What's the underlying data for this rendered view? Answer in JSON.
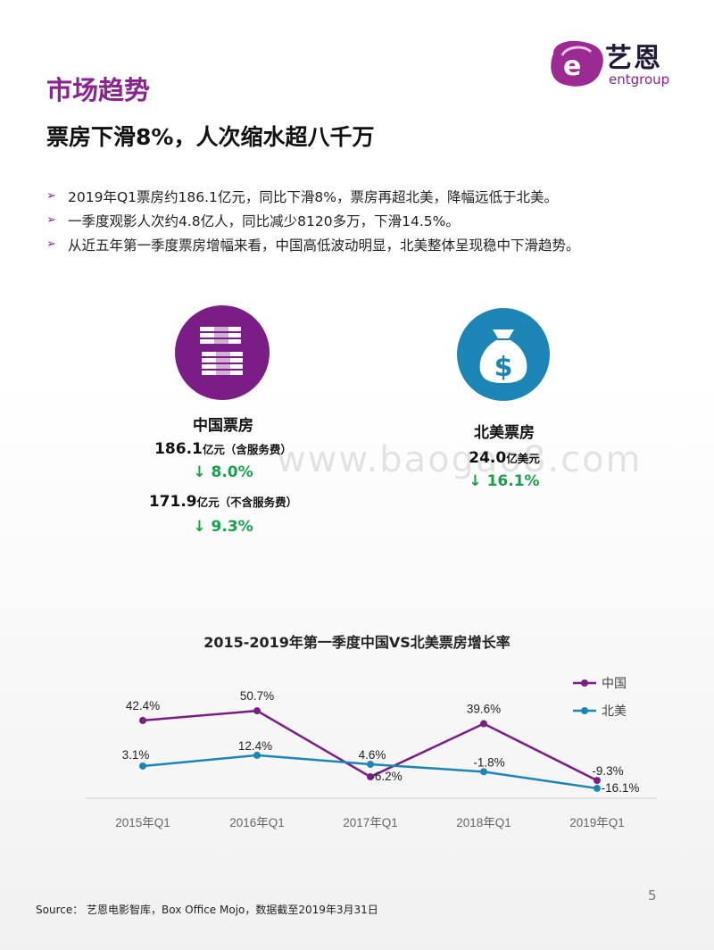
{
  "header": {
    "section_title": "市场趋势",
    "headline": "票房下滑8%，人次缩水超八千万",
    "logo_cn": "艺恩",
    "logo_en": "entgroup"
  },
  "bullets": [
    "2019年Q1票房约186.1亿元，同比下滑8%，票房再超北美，降幅远低于北美。",
    "一季度观影人次约4.8亿人，同比减少8120多万，下滑14.5%。",
    "从近五年第一季度票房增幅来看，中国高低波动明显，北美整体呈现稳中下滑趋势。"
  ],
  "china_stats": {
    "title": "中国票房",
    "value1": "186.1",
    "unit1": "亿元（含服务费）",
    "change1": "↓ 8.0%",
    "value2": "171.9",
    "unit2": "亿元（不含服务费）",
    "change2": "↓ 9.3%"
  },
  "us_stats": {
    "title": "北美票房",
    "value": "24.0",
    "unit": "亿美元",
    "change": "↓ 16.1%"
  },
  "watermark": "www.baogao8.com",
  "colors": {
    "china": "#7b1d86",
    "us": "#1b86b5",
    "accent": "#8a2490",
    "down": "#18a04a"
  },
  "chart_data": {
    "type": "line",
    "title": "2015-2019年第一季度中国VS北美票房增长率",
    "categories": [
      "2015年Q1",
      "2016年Q1",
      "2017年Q1",
      "2018年Q1",
      "2019年Q1"
    ],
    "series": [
      {
        "name": "中国",
        "values": [
          42.4,
          50.7,
          -6.2,
          39.6,
          -9.3
        ],
        "labels": [
          "42.4%",
          "50.7%",
          "-6.2%",
          "39.6%",
          "-9.3%"
        ],
        "color": "#7b1d86"
      },
      {
        "name": "北美",
        "values": [
          3.1,
          12.4,
          4.6,
          -1.8,
          -16.1
        ],
        "labels": [
          "3.1%",
          "12.4%",
          "4.6%",
          "-1.8%",
          "-16.1%"
        ],
        "color": "#1b86b5"
      }
    ],
    "ylim": [
      -20,
      60
    ],
    "grid": false,
    "legend": "top-right"
  },
  "footer": {
    "source": "Source： 艺恩电影智库，Box Office Mojo，数据截至2019年3月31日",
    "page": "5"
  }
}
